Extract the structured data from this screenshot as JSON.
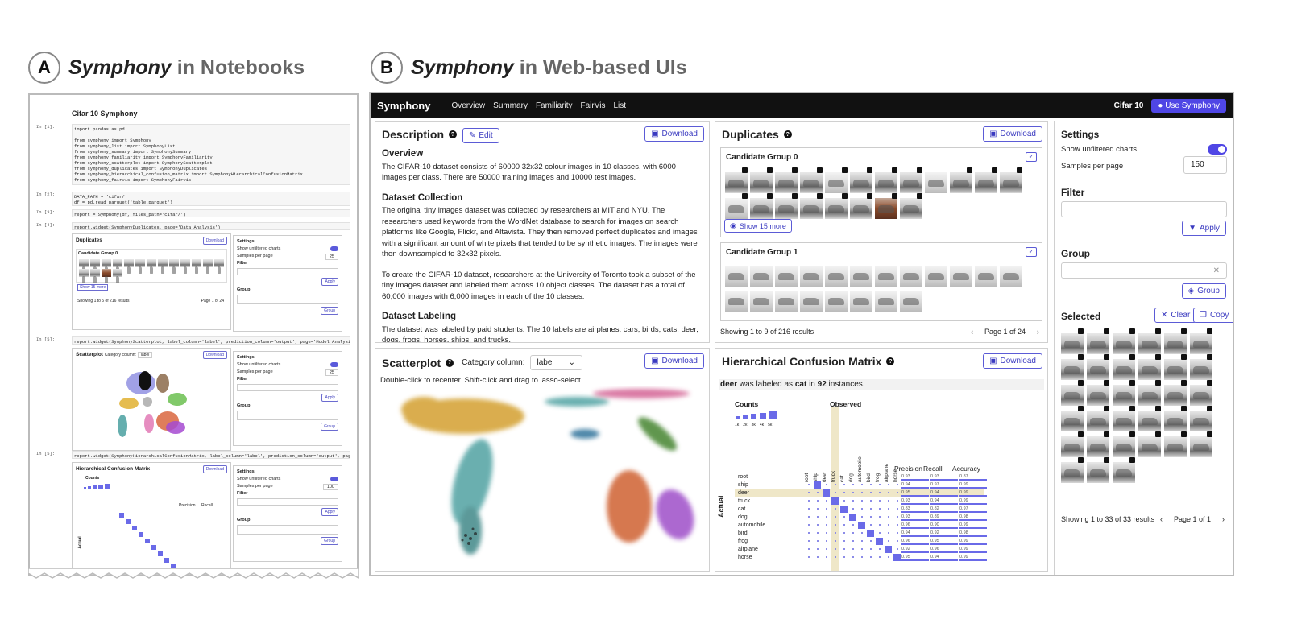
{
  "header_a": {
    "letter": "A",
    "brand": "Symphony",
    "suffix": " in Notebooks"
  },
  "header_b": {
    "letter": "B",
    "brand": "Symphony",
    "suffix": " in Web-based UIs"
  },
  "notebook": {
    "title": "Cifar 10 Symphony",
    "cells": [
      {
        "prompt": "In [1]:",
        "code": "import pandas as pd\n\nfrom symphony import Symphony\nfrom symphony_list import SymphonyList\nfrom symphony_summary import SymphonySummary\nfrom symphony_familiarity import SymphonyFamiliarity\nfrom symphony_scatterplot import SymphonyScatterplot\nfrom symphony_duplicates import SymphonyDuplicates\nfrom symphony_hierarchical_confusion_matrix import SymphonyHierarchicalConfusionMatrix\nfrom symphony_fairvis import SymphonyFairvis\nfrom symphony_markdown import SymphonyMarkdown"
      },
      {
        "prompt": "In [2]:",
        "code": "DATA_PATH = 'cifar/'\ndf = pd.read_parquet('table.parquet')"
      },
      {
        "prompt": "In [3]:",
        "code": "report = Symphony(df, files_path='cifar/')"
      },
      {
        "prompt": "In [4]:",
        "code": "report.widget(SymphonyDuplicates, page='Data Analysis')"
      },
      {
        "prompt": "In [5]:",
        "code": "report.widget(SymphonyScatterplot, label_column='label', prediction_column='output', page='Model Analysis"
      },
      {
        "prompt": "In [5]:",
        "code": "report.widget(SymphonyHierarchicalConfusionMatrix, label_column='label', prediction_column='output', page="
      }
    ],
    "dup_title": "Duplicates",
    "dup_group": "Candidate Group 0",
    "dup_more": "Show 15 more",
    "dup_footer": "Showing 1 to 5 of 216 results",
    "dup_page": "Page 1 of 24",
    "scatter_title": "Scatterplot",
    "scatter_cat_label": "Category column:",
    "scatter_cat_value": "label",
    "hcm_title": "Hierarchical Confusion Matrix",
    "hcm_counts": "Counts",
    "hcm_precision": "Precision",
    "hcm_recall": "Recall",
    "hcm_actual": "Actual",
    "download": "Download",
    "settings": {
      "title": "Settings",
      "unfiltered": "Show unfiltered charts",
      "samples": "Samples per page",
      "samples_value": "25",
      "samples_value_hcm": "100",
      "filter": "Filter",
      "apply": "Apply",
      "group": "Group",
      "group_btn": "Group"
    }
  },
  "web": {
    "brand": "Symphony",
    "nav": [
      "Overview",
      "Summary",
      "Familiarity",
      "FairVis",
      "List"
    ],
    "dataset": "Cifar 10",
    "use_btn": "Use Symphony",
    "download": "Download",
    "description": {
      "title": "Description",
      "edit": "Edit",
      "sections": [
        {
          "heading": "Overview",
          "text": "The CIFAR-10 dataset consists of 60000 32x32 colour images in 10 classes, with 6000 images per class. There are 50000 training images and 10000 test images."
        },
        {
          "heading": "Dataset Collection",
          "text": "The original tiny images dataset was collected by researchers at MIT and NYU. The researchers used keywords from the WordNet database to search for images on search platforms like Google, Flickr, and Altavista. They then removed perfect duplicates and images with a significant amount of white pixels that tended to be synthetic images. The images were then downsampled to 32x32 pixels."
        },
        {
          "heading": "",
          "text": "To create the CIFAR-10 dataset, researchers at the University of Toronto took a subset of the tiny images dataset and labeled them across 10 object classes. The dataset has a total of 60,000 images with 6,000 images in each of the 10 classes."
        },
        {
          "heading": "Dataset Labeling",
          "text": "The dataset was labeled by paid students. The 10 labels are airplanes, cars, birds, cats, deer, dogs, frogs, horses, ships, and trucks."
        }
      ]
    },
    "duplicates": {
      "title": "Duplicates",
      "group0": "Candidate Group 0",
      "group1": "Candidate Group 1",
      "show_more": "Show 15 more",
      "footer": "Showing 1 to 9 of 216 results",
      "page": "Page 1 of 24"
    },
    "scatterplot": {
      "title": "Scatterplot",
      "cat_label": "Category column:",
      "cat_value": "label",
      "hint": "Double-click to recenter. Shift-click and drag to lasso-select."
    },
    "hcm": {
      "title": "Hierarchical Confusion Matrix",
      "caption_a": "deer",
      "caption_b": " was labeled as ",
      "caption_c": "cat",
      "caption_d": " in ",
      "caption_e": "92",
      "caption_f": " instances.",
      "counts": "Counts",
      "count_ticks": [
        "1k",
        "2k",
        "3k",
        "4k",
        "5k"
      ],
      "observed": "Observed",
      "actual": "Actual",
      "precision": "Precision",
      "recall": "Recall",
      "accuracy": "Accuracy",
      "root": "root",
      "rows": [
        {
          "label": "ship",
          "precision": "0.94",
          "recall": "0.97",
          "accuracy": "0.99"
        },
        {
          "label": "deer",
          "precision": "0.95",
          "recall": "0.94",
          "accuracy": "0.99"
        },
        {
          "label": "truck",
          "precision": "0.93",
          "recall": "0.94",
          "accuracy": "0.99"
        },
        {
          "label": "cat",
          "precision": "0.83",
          "recall": "0.82",
          "accuracy": "0.97"
        },
        {
          "label": "dog",
          "precision": "0.93",
          "recall": "0.89",
          "accuracy": "0.98"
        },
        {
          "label": "automobile",
          "precision": "0.96",
          "recall": "0.90",
          "accuracy": "0.99"
        },
        {
          "label": "bird",
          "precision": "0.94",
          "recall": "0.92",
          "accuracy": "0.98"
        },
        {
          "label": "frog",
          "precision": "0.96",
          "recall": "0.95",
          "accuracy": "0.99"
        },
        {
          "label": "airplane",
          "precision": "0.92",
          "recall": "0.96",
          "accuracy": "0.99"
        },
        {
          "label": "horse",
          "precision": "0.95",
          "recall": "0.94",
          "accuracy": "0.99"
        }
      ],
      "root_metrics": {
        "precision": "0.93",
        "recall": "0.93",
        "accuracy": "0.87"
      },
      "columns": [
        "root",
        "ship",
        "deer",
        "truck",
        "cat",
        "dog",
        "automobile",
        "bird",
        "frog",
        "airplane",
        "horse"
      ]
    },
    "settings": {
      "title": "Settings",
      "unfiltered": "Show unfiltered charts",
      "samples": "Samples per page",
      "samples_value": "150",
      "filter": "Filter",
      "apply": "Apply",
      "group": "Group",
      "group_btn": "Group",
      "selected": "Selected",
      "clear": "Clear",
      "copy": "Copy",
      "footer": "Showing 1 to 33 of 33 results",
      "page": "Page 1 of 1"
    }
  },
  "colors": {
    "accent": "#4f46e5",
    "navbar": "#111111",
    "highlight": "#efe7c8"
  }
}
